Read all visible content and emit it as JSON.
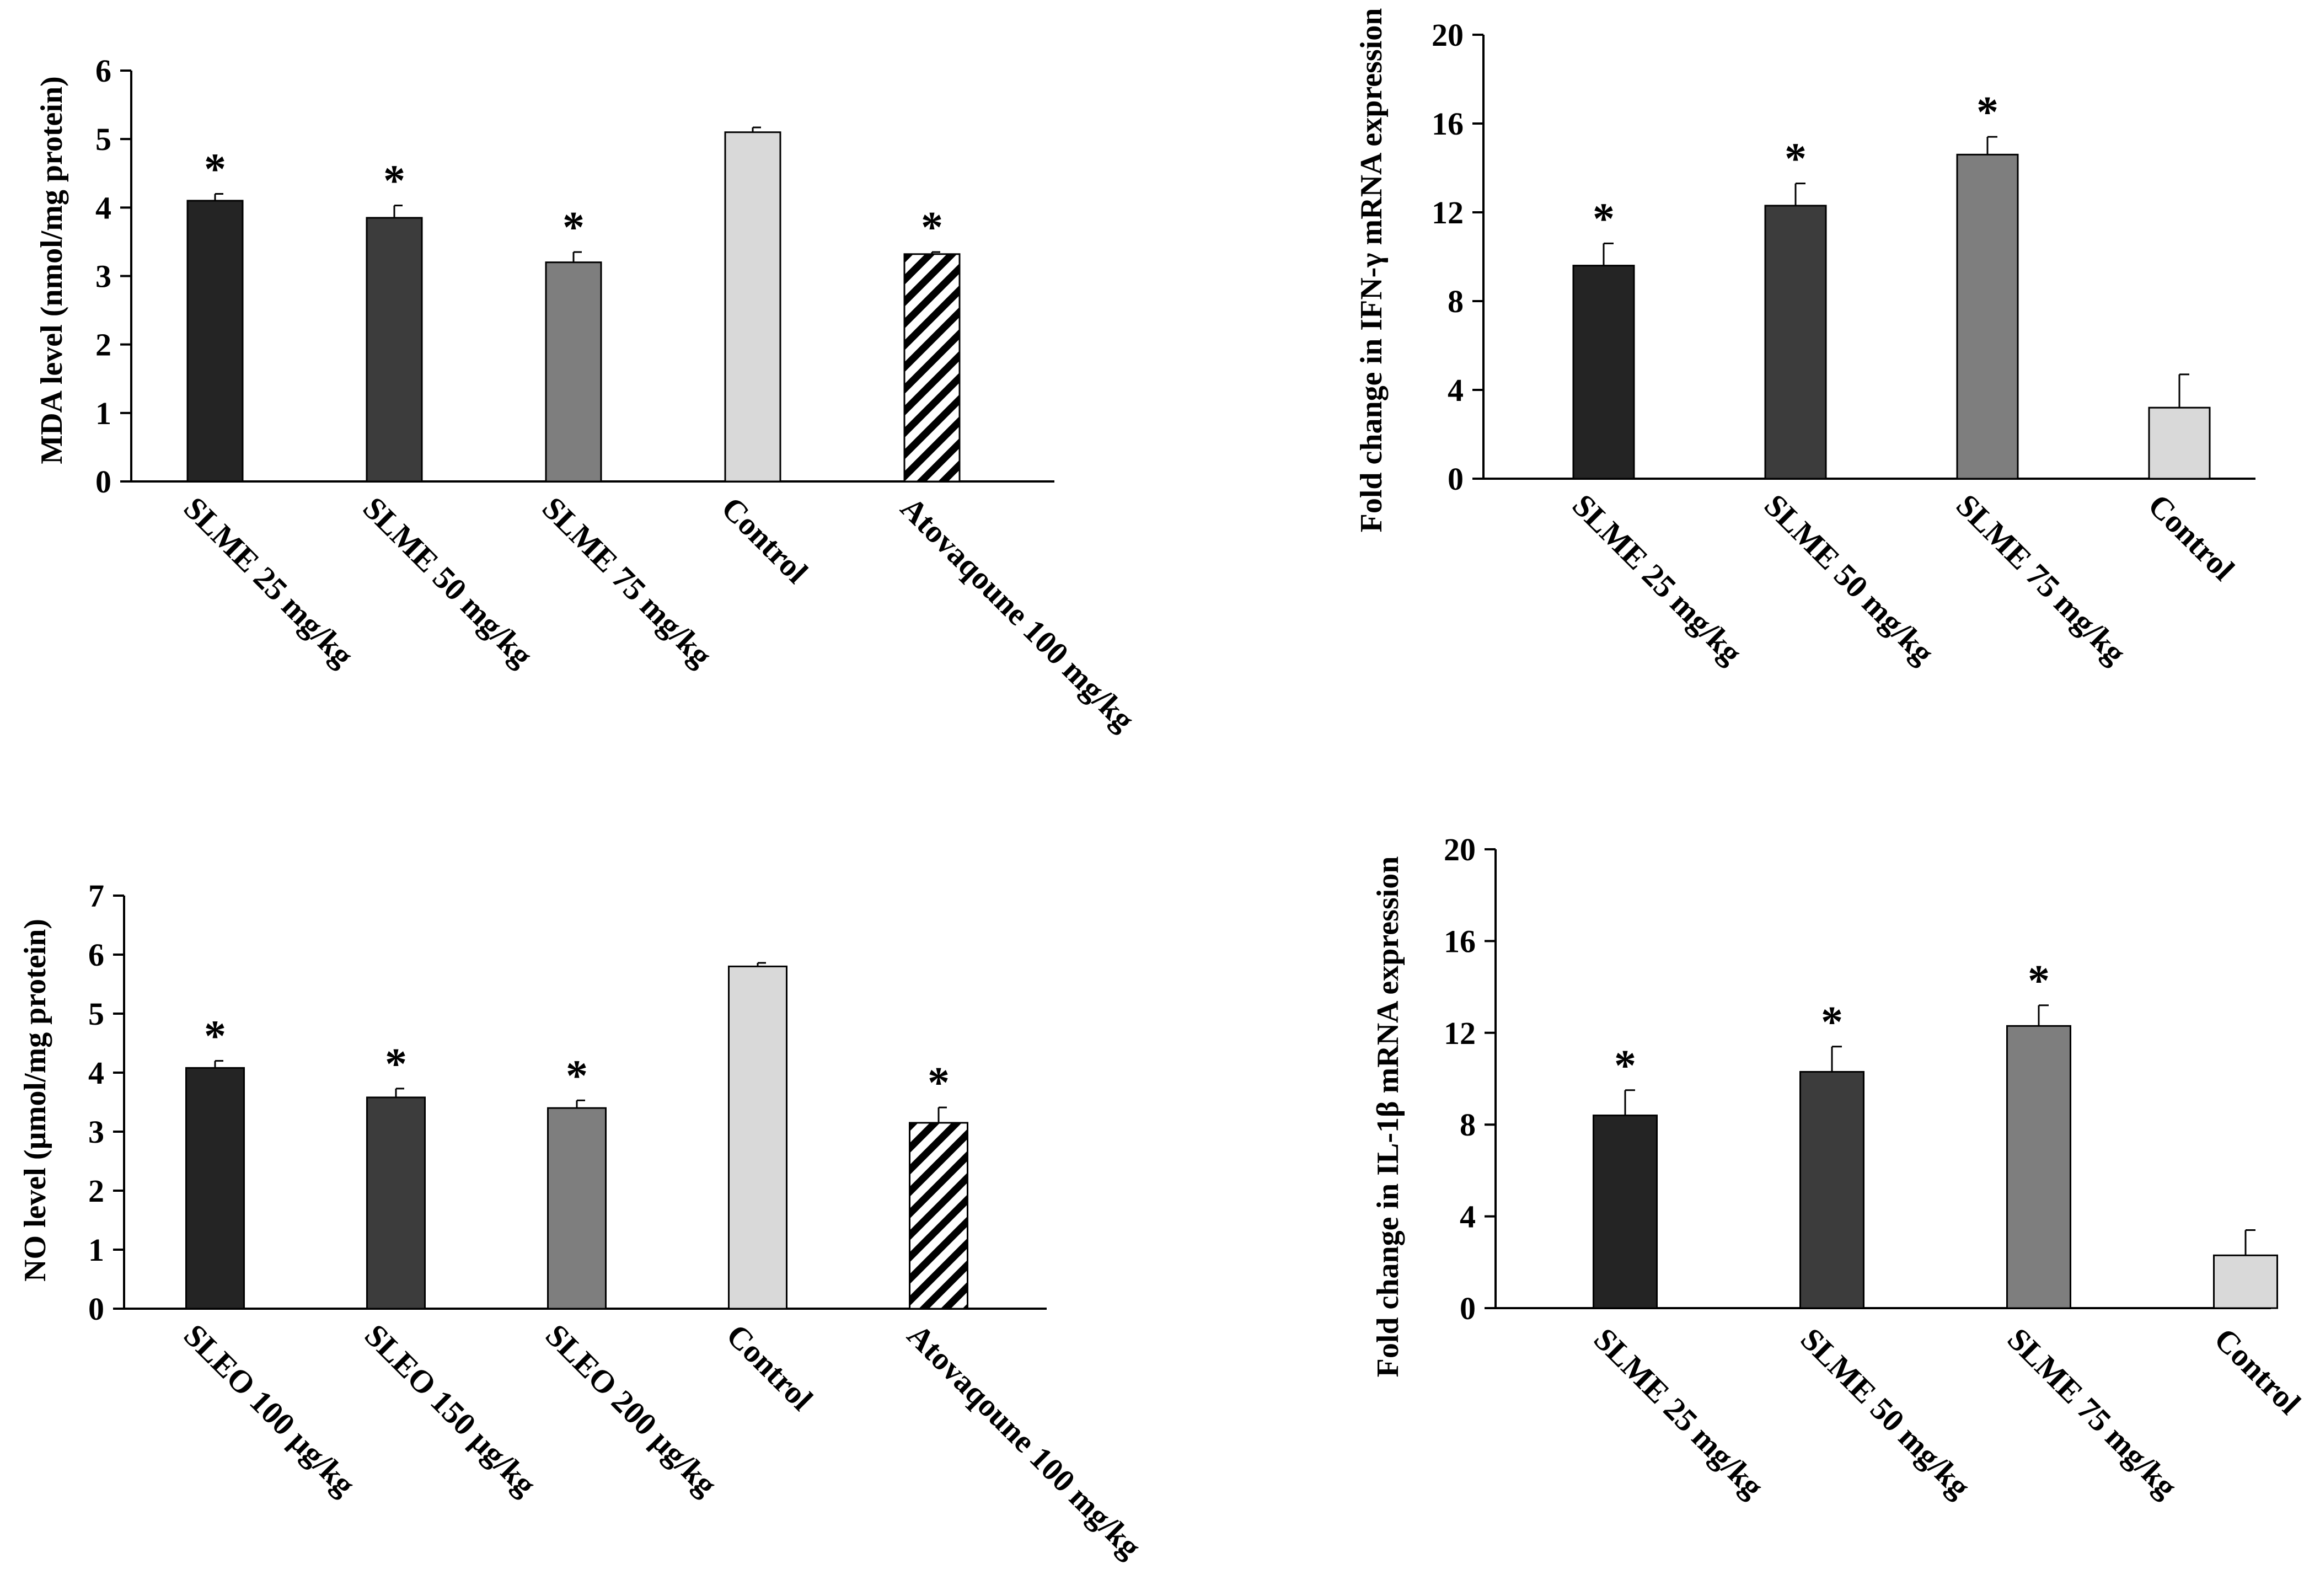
{
  "chart_data": [
    {
      "id": "mda",
      "type": "bar",
      "ylabel": "MDA level (nmol/mg protein)",
      "ylim": [
        0,
        6
      ],
      "yticks": [
        "0",
        "1",
        "2",
        "3",
        "4",
        "5",
        "6"
      ],
      "categories": [
        "SLME 25 mg/kg",
        "SLME 50 mg/kg",
        "SLME 75 mg/kg",
        "Control",
        "Atovaqoune 100 mg/kg"
      ],
      "values": [
        4.1,
        3.85,
        3.2,
        5.1,
        3.32
      ],
      "errors": [
        0.1,
        0.18,
        0.15,
        0.07,
        0.03
      ],
      "significance": [
        "*",
        "*",
        "*",
        "",
        "*"
      ],
      "fills": [
        "#242424",
        "#3c3c3c",
        "#7e7e7e",
        "#d9d9d9",
        "hatch"
      ]
    },
    {
      "id": "ifn",
      "type": "bar",
      "ylabel": "Fold change in IFN-γ mRNA expression",
      "ylim": [
        0,
        20
      ],
      "yticks": [
        "0",
        "4",
        "8",
        "12",
        "16",
        "20"
      ],
      "categories": [
        "SLME 25 mg/kg",
        "SLME 50 mg/kg",
        "SLME 75 mg/kg",
        "Control"
      ],
      "values": [
        9.6,
        12.3,
        14.6,
        3.2
      ],
      "errors": [
        1.0,
        1.0,
        0.8,
        1.5
      ],
      "significance": [
        "*",
        "*",
        "*",
        ""
      ],
      "fills": [
        "#242424",
        "#3c3c3c",
        "#7e7e7e",
        "#d9d9d9"
      ]
    },
    {
      "id": "no",
      "type": "bar",
      "ylabel": "NO level (µmol/mg protein)",
      "ylim": [
        0,
        7
      ],
      "yticks": [
        "0",
        "1",
        "2",
        "3",
        "4",
        "5",
        "6",
        "7"
      ],
      "categories": [
        "SLEO 100 µg/kg",
        "SLEO 150 µg/kg",
        "SLEO 200 µg/kg",
        "Control",
        "Atovaqoune 100 mg/kg"
      ],
      "values": [
        4.08,
        3.58,
        3.4,
        5.8,
        3.15
      ],
      "errors": [
        0.12,
        0.15,
        0.13,
        0.06,
        0.26
      ],
      "significance": [
        "*",
        "*",
        "*",
        "",
        "*"
      ],
      "fills": [
        "#242424",
        "#3c3c3c",
        "#7e7e7e",
        "#d9d9d9",
        "hatch"
      ]
    },
    {
      "id": "il1b",
      "type": "bar",
      "ylabel": "Fold change in IL-1β mRNA expression",
      "ylim": [
        0,
        20
      ],
      "yticks": [
        "0",
        "4",
        "8",
        "12",
        "16",
        "20"
      ],
      "categories": [
        "SLME 25 mg/kg",
        "SLME 50 mg/kg",
        "SLME 75 mg/kg",
        "Control"
      ],
      "values": [
        8.4,
        10.3,
        12.3,
        2.3
      ],
      "errors": [
        1.1,
        1.1,
        0.9,
        1.1
      ],
      "significance": [
        "*",
        "*",
        "*",
        ""
      ],
      "fills": [
        "#242424",
        "#3c3c3c",
        "#7e7e7e",
        "#d9d9d9"
      ]
    }
  ]
}
